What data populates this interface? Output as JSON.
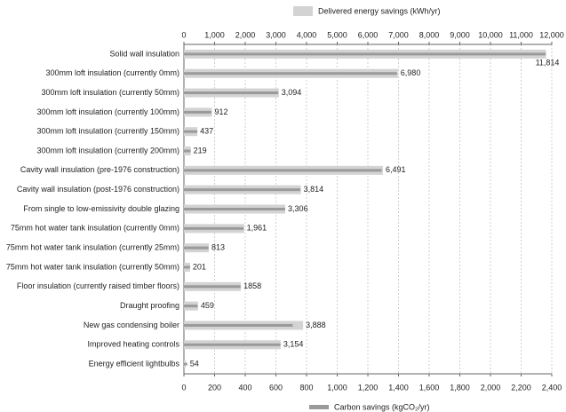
{
  "chart_data": {
    "type": "bar",
    "orientation": "horizontal",
    "categories": [
      "Solid wall insulation",
      "300mm loft insulation (currently 0mm)",
      "300mm loft insulation (currently 50mm)",
      "300mm loft insulation (currently 100mm)",
      "300mm loft insulation (currently 150mm)",
      "300mm loft insulation (currently 200mm)",
      "Cavity wall insulation (pre-1976 construction)",
      "Cavity wall insulation (post-1976 construction)",
      "From single to low-emissivity double glazing",
      "75mm hot water tank insulation (currently 0mm)",
      "75mm hot water tank insulation (currently 25mm)",
      "75mm hot water tank insulation (currently 50mm)",
      "Floor insulation (currently raised timber floors)",
      "Draught proofing",
      "New gas condensing boiler",
      "Improved heating controls",
      "Energy efficient lightbulbs"
    ],
    "series": [
      {
        "name": "Delivered energy savings (kWh/yr)",
        "color": "#d3d3d3",
        "axis": "x",
        "values": [
          11814,
          6980,
          3094,
          912,
          437,
          219,
          6491,
          3814,
          3306,
          1961,
          813,
          201,
          1858,
          459,
          3888,
          3154,
          54
        ],
        "value_labels": [
          "11,814",
          "6,980",
          "3,094",
          "912",
          "437",
          "219",
          "6,491",
          "3,814",
          "3,306",
          "1,961",
          "813",
          "201",
          "1858",
          "459",
          "3,888",
          "3,154",
          "54"
        ]
      },
      {
        "name": "Carbon savings (kgCO₂/yr)",
        "color": "#9a9a9a",
        "axis": "x2",
        "values": [
          2360,
          1390,
          615,
          180,
          88,
          44,
          1290,
          760,
          660,
          390,
          160,
          40,
          370,
          90,
          710,
          630,
          22
        ]
      }
    ],
    "xlim": [
      0,
      12000
    ],
    "xticks": [
      0,
      {
        "value": 1000,
        "label": "1,000"
      },
      {
        "value": 2000,
        "label": "2,000"
      },
      {
        "value": 3000,
        "label": "3,000"
      },
      {
        "value": 4000,
        "label": "4,000"
      },
      {
        "value": 5000,
        "label": "5,000"
      },
      {
        "value": 6000,
        "label": "6,000"
      },
      {
        "value": 7000,
        "label": "7,000"
      },
      {
        "value": 8000,
        "label": "8,000"
      },
      {
        "value": 9000,
        "label": "9,000"
      },
      {
        "value": 10000,
        "label": "10,000"
      },
      {
        "value": 11000,
        "label": "11,000"
      },
      {
        "value": 12000,
        "label": "12,000"
      }
    ],
    "x2lim": [
      0,
      2400
    ],
    "x2ticks": [
      0,
      200,
      400,
      600,
      800,
      {
        "value": 1000,
        "label": "1,000"
      },
      {
        "value": 1200,
        "label": "1,200"
      },
      {
        "value": 1400,
        "label": "1,400"
      },
      {
        "value": 1600,
        "label": "1,600"
      },
      {
        "value": 1800,
        "label": "1,800"
      },
      {
        "value": 2000,
        "label": "2,000"
      },
      {
        "value": 2200,
        "label": "2,200"
      },
      {
        "value": 2400,
        "label": "2,400"
      }
    ],
    "grid": true
  }
}
